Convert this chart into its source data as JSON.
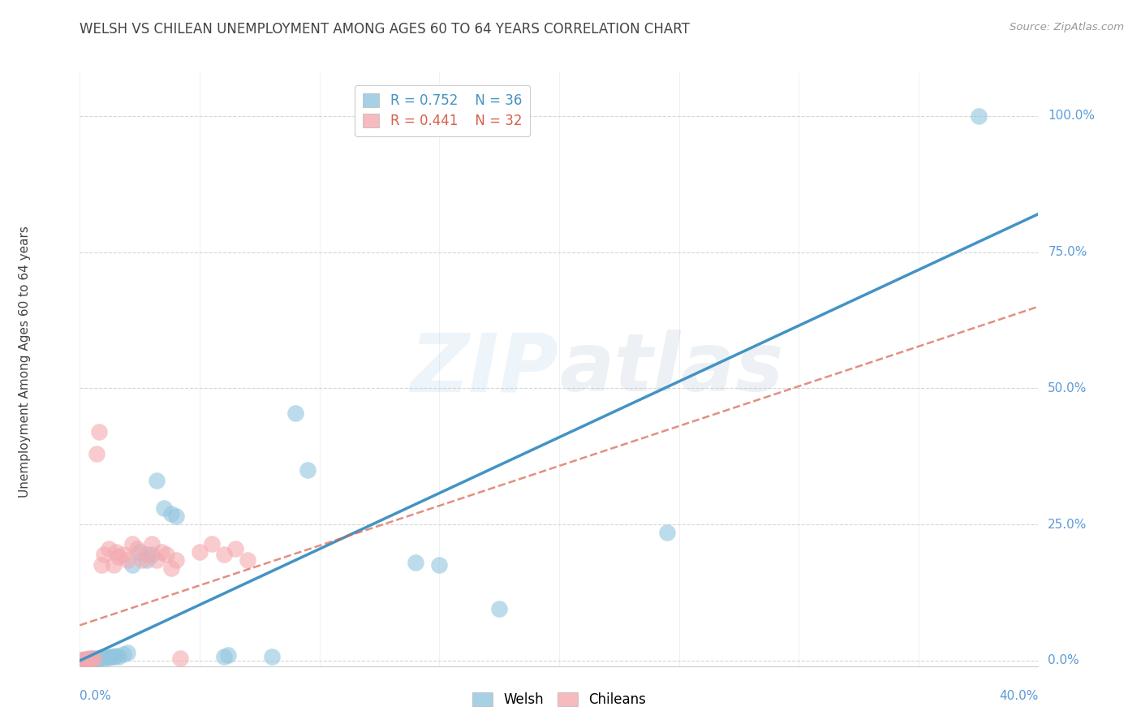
{
  "title": "WELSH VS CHILEAN UNEMPLOYMENT AMONG AGES 60 TO 64 YEARS CORRELATION CHART",
  "source": "Source: ZipAtlas.com",
  "ylabel": "Unemployment Among Ages 60 to 64 years",
  "ytick_labels": [
    "0.0%",
    "25.0%",
    "50.0%",
    "75.0%",
    "100.0%"
  ],
  "ytick_values": [
    0.0,
    0.25,
    0.5,
    0.75,
    1.0
  ],
  "xlim": [
    0.0,
    0.4
  ],
  "ylim": [
    -0.01,
    1.08
  ],
  "welsh_color": "#92c5de",
  "chilean_color": "#f4a9b0",
  "welsh_line_color": "#4393c3",
  "chilean_line_color": "#d6604d",
  "legend_r_welsh": "R = 0.752",
  "legend_n_welsh": "N = 36",
  "legend_r_chilean": "R = 0.441",
  "legend_n_chilean": "N = 32",
  "watermark_zip": "ZIP",
  "watermark_atlas": "atlas",
  "welsh_scatter": [
    [
      0.001,
      0.002
    ],
    [
      0.002,
      0.001
    ],
    [
      0.003,
      0.003
    ],
    [
      0.004,
      0.002
    ],
    [
      0.005,
      0.004
    ],
    [
      0.006,
      0.003
    ],
    [
      0.007,
      0.005
    ],
    [
      0.008,
      0.004
    ],
    [
      0.009,
      0.006
    ],
    [
      0.01,
      0.005
    ],
    [
      0.011,
      0.007
    ],
    [
      0.012,
      0.006
    ],
    [
      0.013,
      0.008
    ],
    [
      0.014,
      0.007
    ],
    [
      0.015,
      0.009
    ],
    [
      0.016,
      0.008
    ],
    [
      0.018,
      0.012
    ],
    [
      0.02,
      0.015
    ],
    [
      0.022,
      0.175
    ],
    [
      0.025,
      0.2
    ],
    [
      0.028,
      0.185
    ],
    [
      0.03,
      0.195
    ],
    [
      0.032,
      0.33
    ],
    [
      0.035,
      0.28
    ],
    [
      0.038,
      0.27
    ],
    [
      0.04,
      0.265
    ],
    [
      0.06,
      0.008
    ],
    [
      0.062,
      0.01
    ],
    [
      0.08,
      0.008
    ],
    [
      0.09,
      0.455
    ],
    [
      0.095,
      0.35
    ],
    [
      0.14,
      0.18
    ],
    [
      0.15,
      0.175
    ],
    [
      0.175,
      0.095
    ],
    [
      0.245,
      0.235
    ],
    [
      0.375,
      1.0
    ]
  ],
  "chilean_scatter": [
    [
      0.001,
      0.002
    ],
    [
      0.002,
      0.003
    ],
    [
      0.003,
      0.002
    ],
    [
      0.004,
      0.004
    ],
    [
      0.005,
      0.003
    ],
    [
      0.006,
      0.005
    ],
    [
      0.007,
      0.38
    ],
    [
      0.008,
      0.42
    ],
    [
      0.009,
      0.175
    ],
    [
      0.01,
      0.195
    ],
    [
      0.012,
      0.205
    ],
    [
      0.014,
      0.175
    ],
    [
      0.015,
      0.2
    ],
    [
      0.016,
      0.19
    ],
    [
      0.018,
      0.195
    ],
    [
      0.02,
      0.185
    ],
    [
      0.022,
      0.215
    ],
    [
      0.024,
      0.205
    ],
    [
      0.026,
      0.185
    ],
    [
      0.028,
      0.195
    ],
    [
      0.03,
      0.215
    ],
    [
      0.032,
      0.185
    ],
    [
      0.034,
      0.2
    ],
    [
      0.036,
      0.195
    ],
    [
      0.038,
      0.17
    ],
    [
      0.04,
      0.185
    ],
    [
      0.042,
      0.005
    ],
    [
      0.05,
      0.2
    ],
    [
      0.055,
      0.215
    ],
    [
      0.06,
      0.195
    ],
    [
      0.065,
      0.205
    ],
    [
      0.07,
      0.185
    ]
  ],
  "welsh_trendline_x": [
    0.0,
    0.4
  ],
  "welsh_trendline_y": [
    0.0,
    0.82
  ],
  "chilean_trendline_x": [
    0.0,
    0.4
  ],
  "chilean_trendline_y": [
    0.065,
    0.65
  ],
  "background_color": "#ffffff",
  "grid_color": "#cccccc",
  "title_color": "#444444",
  "tick_color": "#5b9bd5"
}
